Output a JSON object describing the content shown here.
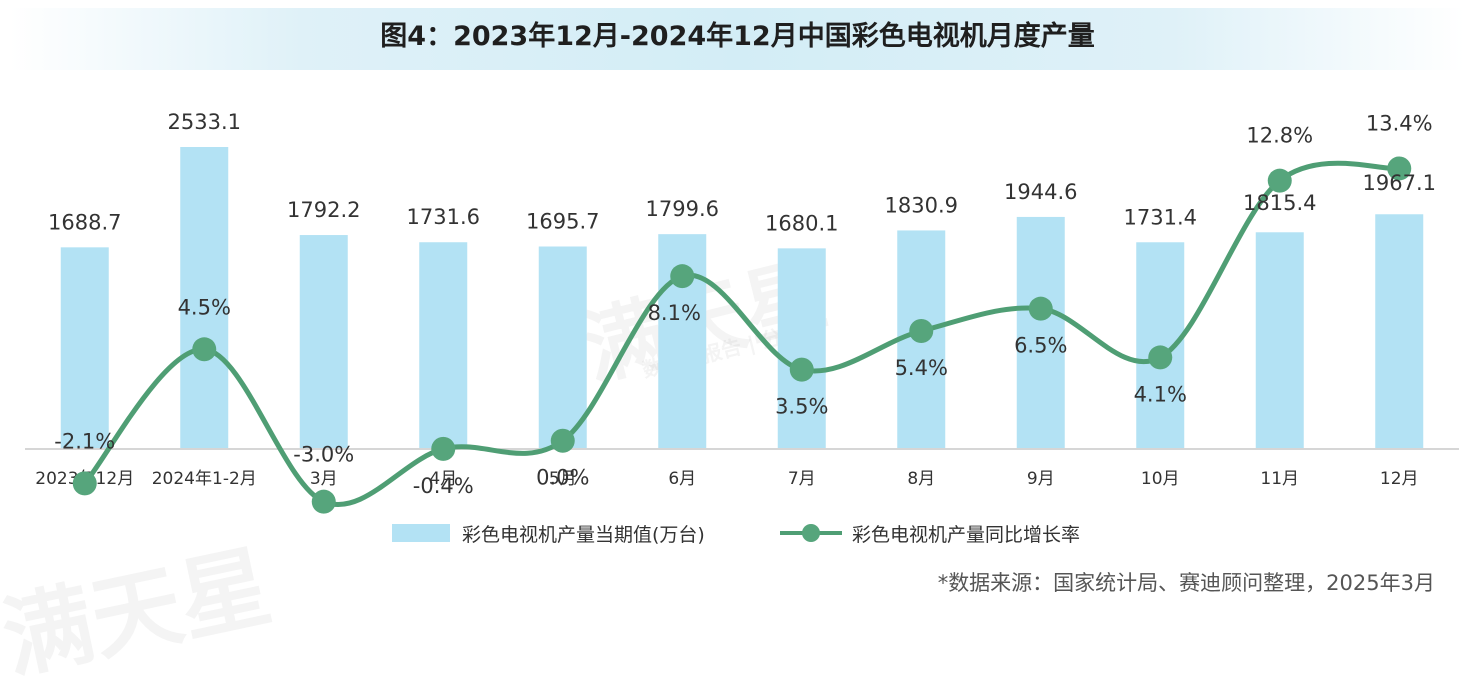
{
  "title": "图4：2023年12月-2024年12月中国彩色电视机月度产量",
  "source_note": "*数据来源：国家统计局、赛迪顾问整理，2025年3月",
  "watermark": {
    "text": "满天星",
    "sub": "数据 | 报告 | 分享"
  },
  "colors": {
    "bar": "#b3e2f4",
    "line": "#4f9e74",
    "marker": "#56a57c",
    "text": "#333333",
    "axis": "#c8c8c8"
  },
  "chart_data": {
    "type": "bar",
    "categories": [
      "2023年12月",
      "2024年1-2月",
      "3月",
      "4月",
      "5月",
      "6月",
      "7月",
      "8月",
      "9月",
      "10月",
      "11月",
      "12月"
    ],
    "series": [
      {
        "name": "彩色电视机产量当期值(万台)",
        "type": "bar",
        "axis": "left",
        "values": [
          1688.7,
          2533.1,
          1792.2,
          1731.6,
          1695.7,
          1799.6,
          1680.1,
          1830.9,
          1944.6,
          1731.4,
          1815.4,
          1967.1
        ],
        "labels": [
          "1688.7",
          "2533.1",
          "1792.2",
          "1731.6",
          "1695.7",
          "1799.6",
          "1680.1",
          "1830.9",
          "1944.6",
          "1731.4",
          "1815.4",
          "1967.1"
        ]
      },
      {
        "name": "彩色电视机产量同比增长率",
        "type": "line",
        "axis": "right",
        "values": [
          -2.1,
          4.5,
          -3.0,
          -0.4,
          0.0,
          8.1,
          3.5,
          5.4,
          6.5,
          4.1,
          12.8,
          13.4
        ],
        "labels": [
          "-2.1%",
          "4.5%",
          "-3.0%",
          "-0.4%",
          "0.0%",
          "8.1%",
          "3.5%",
          "5.4%",
          "6.5%",
          "4.1%",
          "12.8%",
          "13.4%"
        ]
      }
    ],
    "ylim_left": [
      0,
      2600
    ],
    "ylim_right": [
      -4,
      18
    ],
    "grid": false,
    "legend": "bottom-center"
  }
}
